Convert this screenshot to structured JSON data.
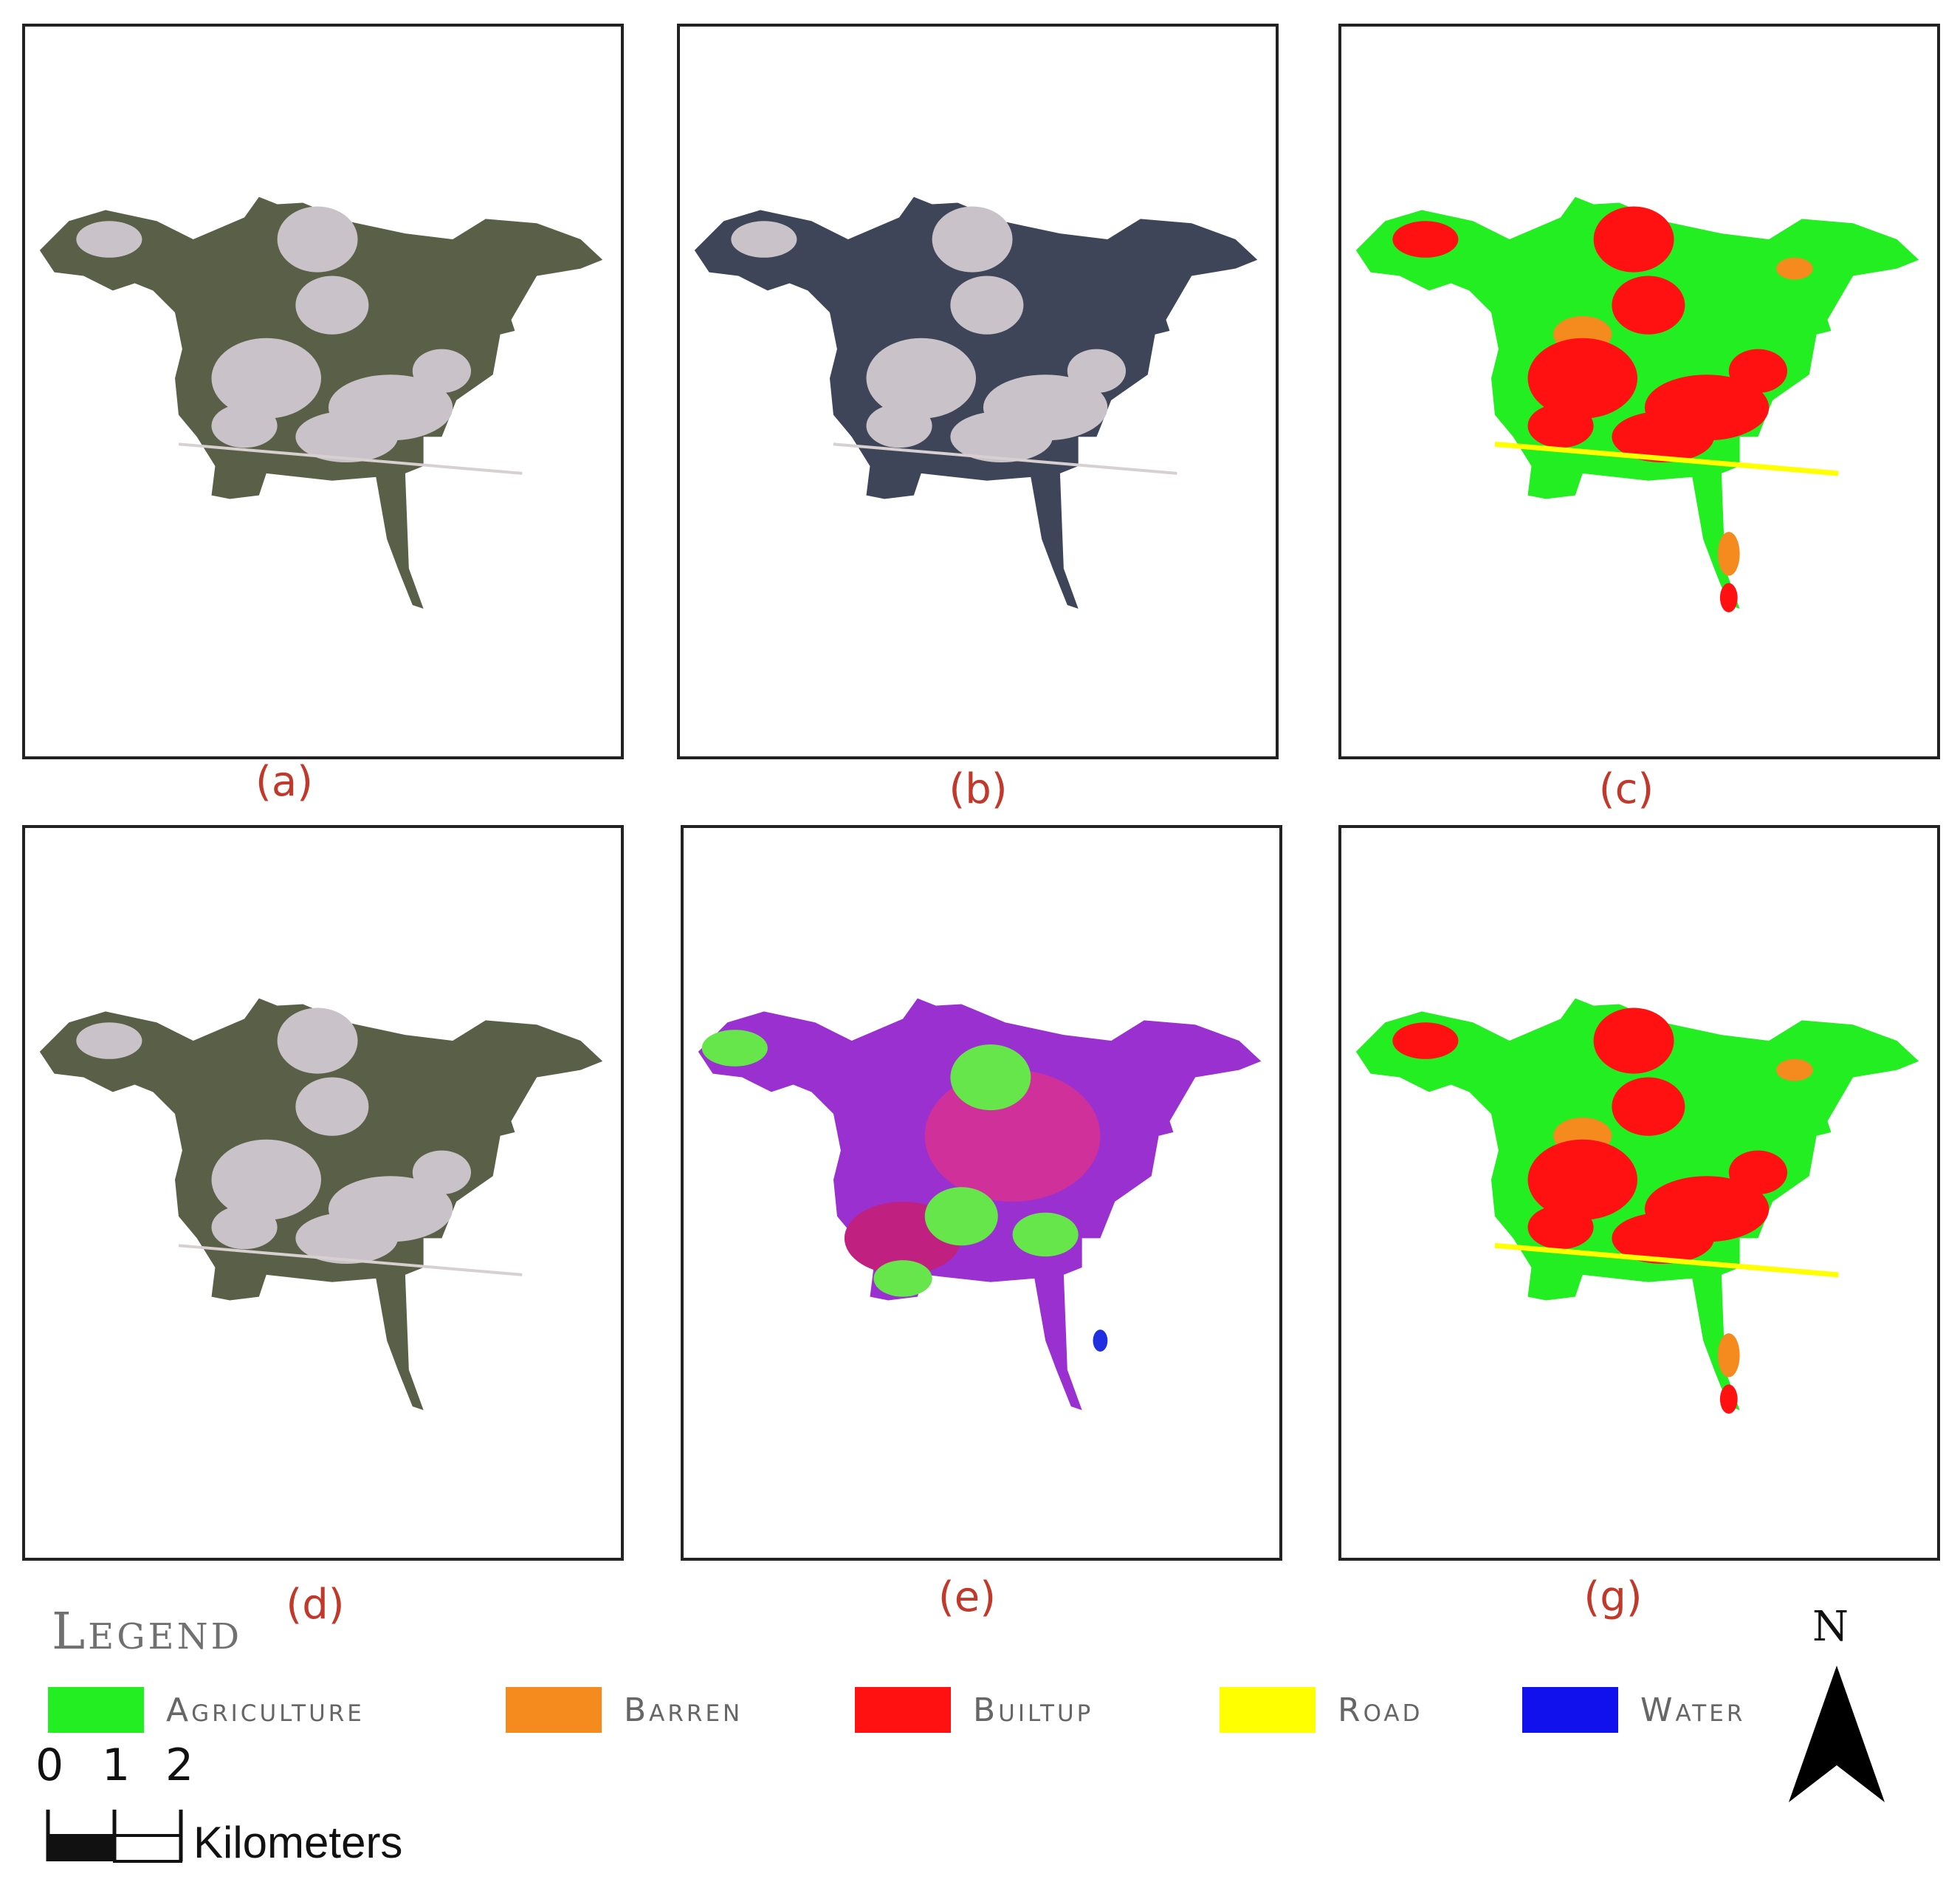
{
  "panels": [
    {
      "label": "(a)",
      "style": "satellite"
    },
    {
      "label": "(b)",
      "style": "satellite-dark"
    },
    {
      "label": "(c)",
      "style": "classified"
    },
    {
      "label": "(d)",
      "style": "satellite"
    },
    {
      "label": "(e)",
      "style": "false-color"
    },
    {
      "label": "(g)",
      "style": "classified"
    }
  ],
  "legend": {
    "title": "Legend",
    "items": [
      {
        "label": "Agriculture",
        "color": "#22ee22"
      },
      {
        "label": "Barren",
        "color": "#f58a1f"
      },
      {
        "label": "Builtup",
        "color": "#ff1111"
      },
      {
        "label": "Road",
        "color": "#ffff00"
      },
      {
        "label": "Water",
        "color": "#1111ee"
      }
    ]
  },
  "scale_bar": {
    "ticks": [
      "0",
      "1",
      "2"
    ],
    "unit": "Kilometers"
  },
  "north_arrow": {
    "label": "N"
  },
  "colors": {
    "label_red": "#c0392b",
    "satellite": "#5a6048",
    "satellite_dark": "#3e4558",
    "false_color": "#9b30d0",
    "urban_light": "#c9c2c8"
  }
}
